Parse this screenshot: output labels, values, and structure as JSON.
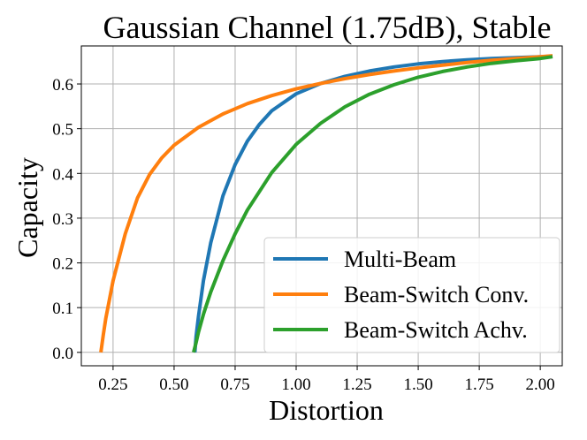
{
  "chart_data": {
    "type": "line",
    "title": "Gaussian Channel (1.75dB), Stable",
    "xlabel": "Distortion",
    "ylabel": "Capacity",
    "xlim": [
      0.12,
      2.09
    ],
    "ylim": [
      -0.03,
      0.685
    ],
    "xticks": [
      "0.25",
      "0.50",
      "0.75",
      "1.00",
      "1.25",
      "1.50",
      "1.75",
      "2.00"
    ],
    "yticks": [
      "0.0",
      "0.1",
      "0.2",
      "0.3",
      "0.4",
      "0.5",
      "0.6"
    ],
    "grid": true,
    "legend_position": "lower right",
    "series": [
      {
        "name": "Multi-Beam",
        "color": "#1f77b4",
        "x": [
          0.585,
          0.59,
          0.6,
          0.62,
          0.65,
          0.7,
          0.75,
          0.8,
          0.85,
          0.9,
          1.0,
          1.1,
          1.2,
          1.3,
          1.4,
          1.5,
          1.6,
          1.7,
          1.8,
          1.9,
          2.0,
          2.05
        ],
        "y": [
          0.0,
          0.035,
          0.08,
          0.16,
          0.245,
          0.35,
          0.42,
          0.472,
          0.51,
          0.54,
          0.578,
          0.601,
          0.617,
          0.629,
          0.638,
          0.645,
          0.65,
          0.654,
          0.657,
          0.659,
          0.661,
          0.662
        ]
      },
      {
        "name": "Beam-Switch Conv.",
        "color": "#ff7f0e",
        "x": [
          0.2,
          0.21,
          0.22,
          0.25,
          0.3,
          0.35,
          0.4,
          0.45,
          0.5,
          0.6,
          0.7,
          0.8,
          0.9,
          1.0,
          1.1,
          1.2,
          1.3,
          1.4,
          1.5,
          1.6,
          1.7,
          1.8,
          1.9,
          2.0,
          2.05
        ],
        "y": [
          0.0,
          0.04,
          0.075,
          0.16,
          0.265,
          0.345,
          0.398,
          0.435,
          0.463,
          0.503,
          0.533,
          0.556,
          0.574,
          0.589,
          0.601,
          0.612,
          0.621,
          0.629,
          0.636,
          0.642,
          0.648,
          0.653,
          0.657,
          0.661,
          0.663
        ]
      },
      {
        "name": "Beam-Switch Achv.",
        "color": "#2ca02c",
        "x": [
          0.58,
          0.59,
          0.6,
          0.62,
          0.65,
          0.7,
          0.75,
          0.8,
          0.9,
          1.0,
          1.1,
          1.2,
          1.3,
          1.4,
          1.5,
          1.6,
          1.7,
          1.8,
          1.9,
          2.0,
          2.05
        ],
        "y": [
          0.0,
          0.022,
          0.045,
          0.085,
          0.135,
          0.205,
          0.265,
          0.318,
          0.402,
          0.465,
          0.512,
          0.549,
          0.577,
          0.598,
          0.615,
          0.628,
          0.638,
          0.646,
          0.652,
          0.657,
          0.661
        ]
      }
    ]
  }
}
